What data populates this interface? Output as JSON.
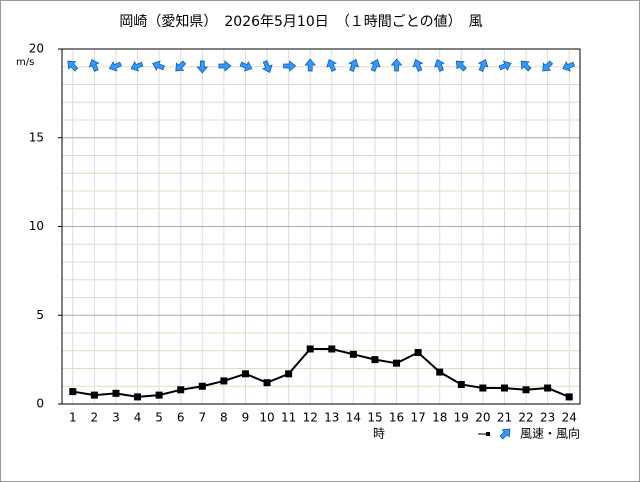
{
  "chart_data": {
    "type": "line",
    "title": "岡崎（愛知県）　2026年5月10日　（１時間ごとの値）　風",
    "y_unit": "m/s",
    "x_label": "時",
    "categories": [
      "1",
      "2",
      "3",
      "4",
      "5",
      "6",
      "7",
      "8",
      "9",
      "10",
      "11",
      "12",
      "13",
      "14",
      "15",
      "16",
      "17",
      "18",
      "19",
      "20",
      "21",
      "22",
      "23",
      "24"
    ],
    "series": [
      {
        "name": "風速・風向",
        "color": "#000000",
        "values": [
          0.7,
          0.5,
          0.6,
          0.4,
          0.5,
          0.8,
          1.0,
          1.3,
          1.7,
          1.2,
          1.7,
          3.1,
          3.1,
          2.8,
          2.5,
          2.3,
          2.9,
          1.8,
          1.1,
          0.9,
          0.9,
          0.8,
          0.9,
          0.4
        ]
      }
    ],
    "wind_direction_deg": [
      315,
      337.5,
      247.5,
      247.5,
      292.5,
      225,
      180,
      90,
      112.5,
      157.5,
      90,
      0,
      337.5,
      22.5,
      22.5,
      0,
      337.5,
      337.5,
      315,
      22.5,
      67.5,
      315,
      225,
      247.5
    ],
    "arrow_color": "#3399ff",
    "ylim": [
      0,
      20
    ],
    "yticks": [
      0,
      5,
      10,
      15,
      20
    ],
    "minor_yticks": [
      1,
      2,
      3,
      4,
      6,
      7,
      8,
      9,
      11,
      12,
      13,
      14,
      16,
      17,
      18,
      19
    ],
    "grid": true
  }
}
